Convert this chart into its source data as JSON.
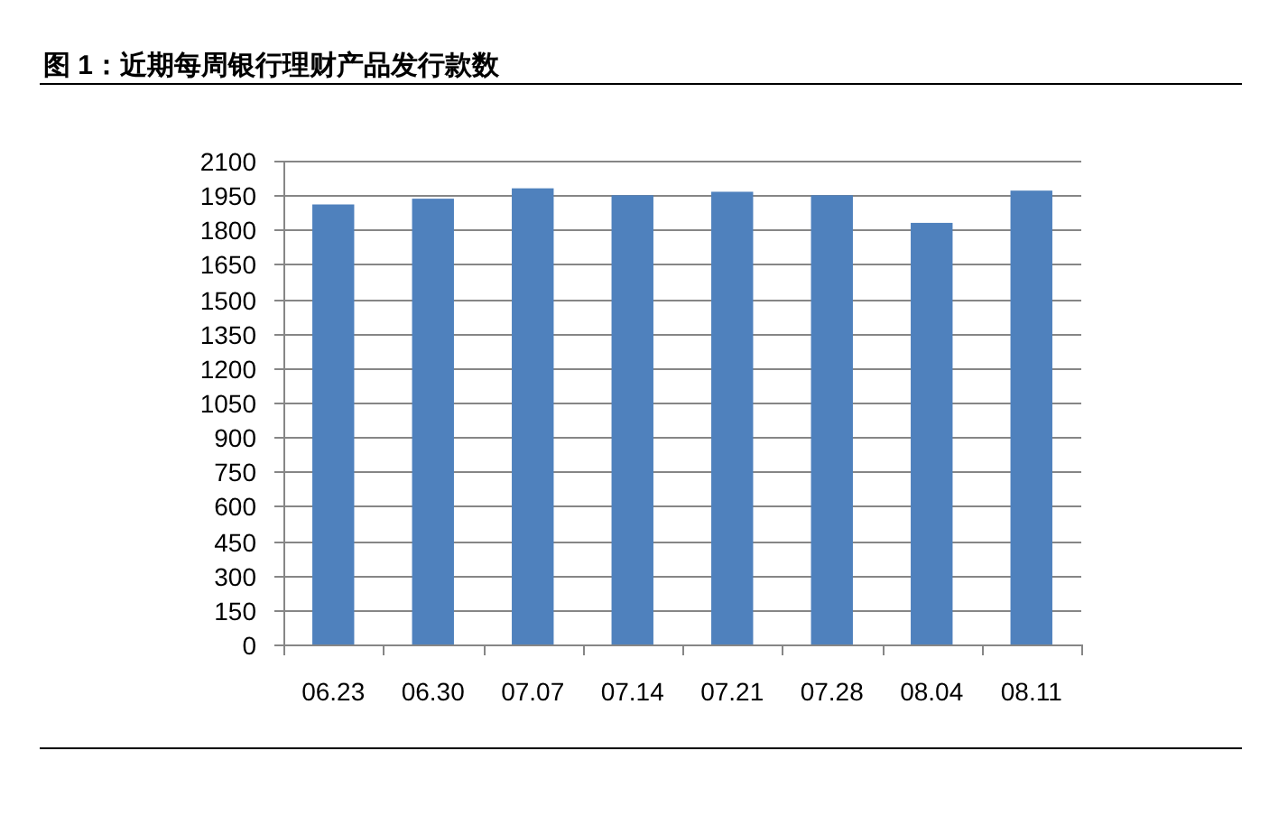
{
  "chart_data": {
    "type": "bar",
    "title": "图 1：近期每周银行理财产品发行款数",
    "categories": [
      "06.23",
      "06.30",
      "07.07",
      "07.14",
      "07.21",
      "07.28",
      "08.04",
      "08.11"
    ],
    "values": [
      1910,
      1935,
      1980,
      1950,
      1965,
      1950,
      1830,
      1970
    ],
    "color": "#4f81bd",
    "ylim": [
      0,
      2100
    ],
    "yticks": [
      0,
      150,
      300,
      450,
      600,
      750,
      900,
      1050,
      1200,
      1350,
      1500,
      1650,
      1800,
      1950,
      2100
    ],
    "grid": "y"
  }
}
